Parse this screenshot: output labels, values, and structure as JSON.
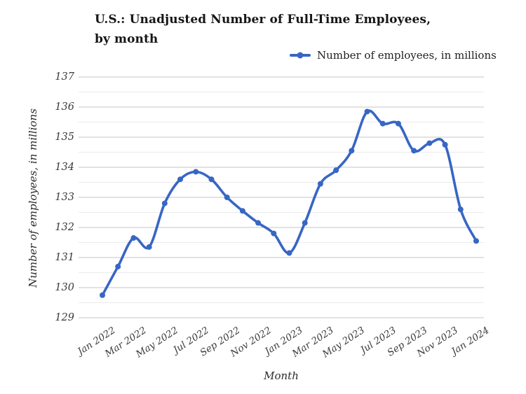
{
  "chart_data": {
    "type": "line",
    "title": "U.S.: Unadjusted Number of Full-Time Employees, by month",
    "xlabel": "Month",
    "ylabel": "Number of employees, in millions",
    "legend_position": "top-right",
    "grid": {
      "major": true,
      "minor": true,
      "minor_step": 0.5
    },
    "ylim": [
      129,
      137
    ],
    "y_ticks": [
      137,
      136,
      135,
      134,
      133,
      132,
      131,
      130,
      129
    ],
    "x_tick_labels": [
      "Jan 2022",
      "Mar 2022",
      "May 2022",
      "Jul 2022",
      "Sep 2022",
      "Nov 2022",
      "Jan 2023",
      "Mar 2023",
      "May 2023",
      "Jul 2023",
      "Sep 2023",
      "Nov 2023",
      "Jan 2024"
    ],
    "x": [
      "Jan 2022",
      "Feb 2022",
      "Mar 2022",
      "Apr 2022",
      "May 2022",
      "Jun 2022",
      "Jul 2022",
      "Aug 2022",
      "Sep 2022",
      "Oct 2022",
      "Nov 2022",
      "Dec 2022",
      "Jan 2023",
      "Feb 2023",
      "Mar 2023",
      "Apr 2023",
      "May 2023",
      "Jun 2023",
      "Jul 2023",
      "Aug 2023",
      "Sep 2023",
      "Oct 2023",
      "Nov 2023",
      "Dec 2023",
      "Jan 2024"
    ],
    "series": [
      {
        "name": "Number of employees, in millions",
        "values": [
          129.75,
          130.7,
          131.65,
          131.35,
          132.8,
          133.6,
          133.85,
          133.6,
          133.0,
          132.55,
          132.15,
          131.8,
          131.15,
          132.15,
          133.45,
          133.9,
          134.55,
          135.85,
          135.45,
          135.45,
          134.55,
          134.8,
          134.75,
          132.6,
          131.55
        ]
      }
    ],
    "colors": {
      "line": "#3766c4",
      "marker": "#3766c4",
      "grid_major": "#c5c5c5",
      "grid_minor": "#ebebeb",
      "title_text": "#161616",
      "tick_text": "#3a3a3a"
    }
  }
}
